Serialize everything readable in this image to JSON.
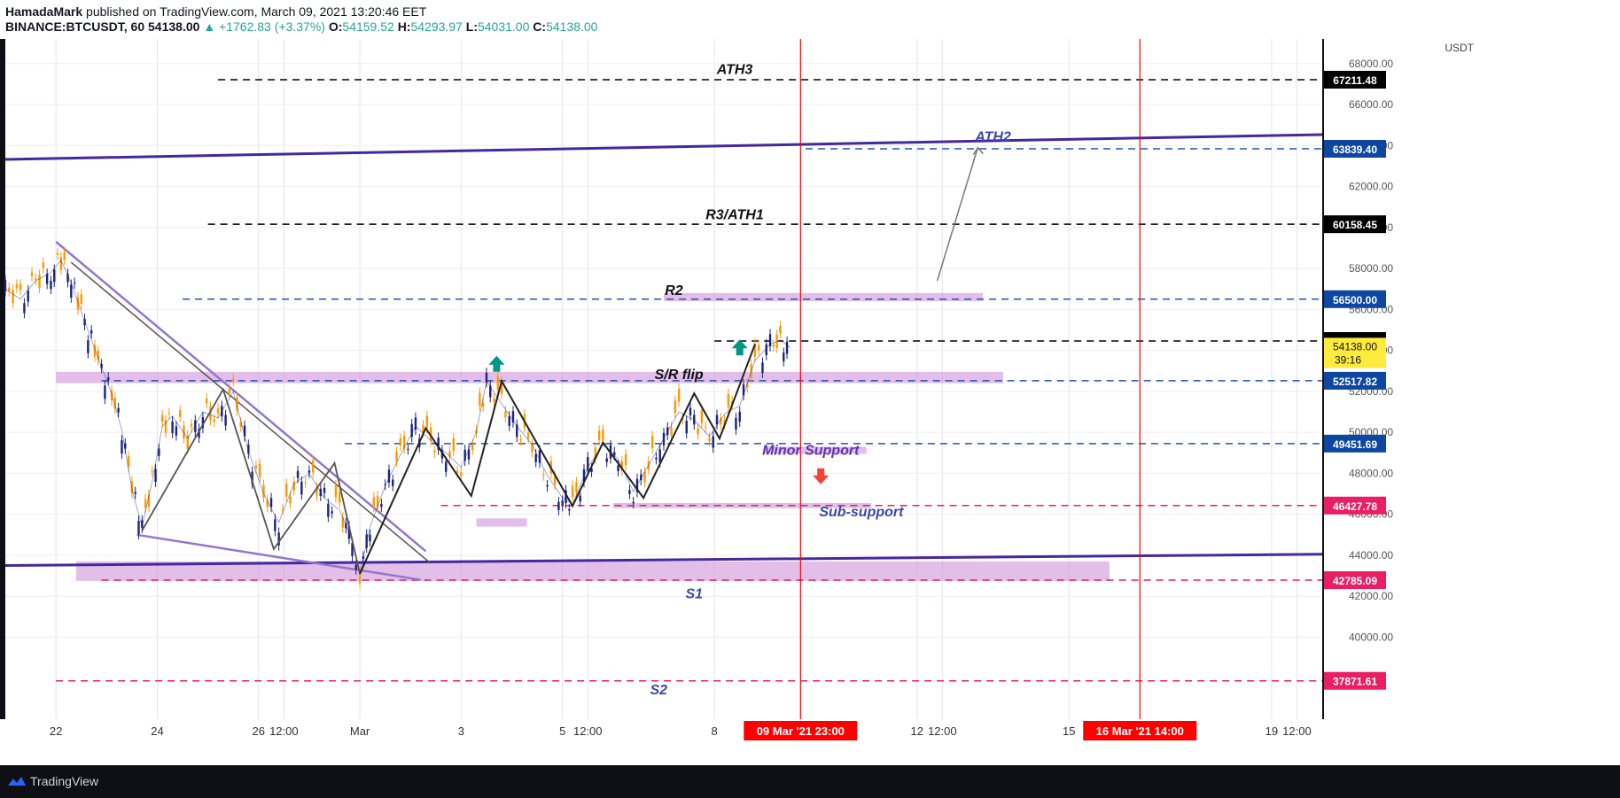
{
  "header": {
    "author": "HamadaMark",
    "published": "published on TradingView.com, March 09, 2021 13:20:46 EET",
    "symbol": "BINANCE:BTCUSDT, 60",
    "last": "54138.00",
    "change": "▲ +1762.83 (+3.37%)",
    "o_label": "O:",
    "o_val": "54159.52",
    "h_label": "H:",
    "h_val": "54293.97",
    "l_label": "L:",
    "l_val": "54031.00",
    "c_label": "C:",
    "c_val": "54138.00"
  },
  "chart_data": {
    "type": "line",
    "currency": "USDT",
    "ylim": [
      36000,
      69200
    ],
    "y_ticks": [
      40000,
      42000,
      44000,
      46000,
      48000,
      50000,
      52000,
      54000,
      56000,
      58000,
      60000,
      62000,
      64000,
      66000,
      68000
    ],
    "y_tick_labels": [
      "40000.00",
      "42000.00",
      "44000.00",
      "46000.00",
      "48000.00",
      "50000.00",
      "52000.00",
      "54000.00",
      "56000.00",
      "58000.00",
      "60000.00",
      "62000.00",
      "64000.00",
      "66000.00",
      "68000.00"
    ],
    "x_tick_labels": [
      "22",
      "24",
      "26",
      "12:00",
      "Mar",
      "3",
      "5",
      "12:00",
      "8",
      "12",
      "12:00",
      "15",
      "19",
      "12:00"
    ],
    "x_tick_days": [
      22,
      24,
      26,
      26.5,
      28,
      30,
      32,
      32.5,
      35,
      39,
      39.5,
      42,
      46,
      46.5
    ],
    "x_range_days": [
      21,
      47
    ],
    "price_series": {
      "x_days": [
        21.0,
        21.3,
        21.6,
        21.9,
        22.1,
        22.3,
        22.5,
        22.7,
        22.9,
        23.1,
        23.3,
        23.5,
        23.7,
        23.9,
        24.1,
        24.3,
        24.6,
        24.9,
        25.2,
        25.5,
        25.8,
        26.1,
        26.4,
        26.7,
        27.0,
        27.3,
        27.6,
        27.85,
        28.0,
        28.2,
        28.5,
        28.8,
        29.1,
        29.4,
        29.7,
        30.0,
        30.3,
        30.5,
        30.8,
        31.1,
        31.4,
        31.7,
        32.0,
        32.2,
        32.5,
        32.8,
        33.1,
        33.4,
        33.7,
        34.0,
        34.3,
        34.6,
        34.9,
        35.2,
        35.5,
        35.8,
        36.1,
        36.3,
        36.5
      ],
      "y": [
        57000,
        56500,
        57400,
        57800,
        58400,
        57300,
        55900,
        54500,
        53200,
        51900,
        50100,
        47200,
        45400,
        47600,
        50300,
        50800,
        49700,
        51000,
        50700,
        52000,
        49100,
        47000,
        45600,
        47500,
        48000,
        46800,
        46200,
        44700,
        43100,
        45400,
        47400,
        48900,
        50300,
        49600,
        49000,
        48300,
        50000,
        52500,
        51400,
        50300,
        49400,
        47900,
        46800,
        46500,
        48300,
        49400,
        48700,
        47100,
        48400,
        49700,
        51000,
        50600,
        49800,
        50900,
        51300,
        53500,
        54300,
        54500,
        54138
      ]
    },
    "horizontal_levels": [
      {
        "value": 67211.48,
        "label": "67211.48",
        "color": "#000000",
        "tag_bg": "#000000"
      },
      {
        "value": 63839.4,
        "label": "63839.40",
        "color": "#1e56b8",
        "tag_bg": "#0d47a1"
      },
      {
        "value": 60158.45,
        "label": "60158.45",
        "color": "#000000",
        "tag_bg": "#000000"
      },
      {
        "value": 56500.0,
        "label": "56500.00",
        "color": "#1e56b8",
        "tag_bg": "#0d47a1"
      },
      {
        "value": 54458.62,
        "label": "54458.62",
        "color": "#000000",
        "tag_bg": "#000000"
      },
      {
        "value": 52517.82,
        "label": "52517.82",
        "color": "#1e56b8",
        "tag_bg": "#0d47a1"
      },
      {
        "value": 49451.69,
        "label": "49451.69",
        "color": "#1e56b8",
        "tag_bg": "#0d47a1"
      },
      {
        "value": 46427.78,
        "label": "46427.78",
        "color": "#e91e63",
        "tag_bg": "#e91e63"
      },
      {
        "value": 42785.09,
        "label": "42785.09",
        "color": "#e91e63",
        "tag_bg": "#e91e63"
      },
      {
        "value": 37871.61,
        "label": "37871.61",
        "color": "#e91e63",
        "tag_bg": "#e91e63"
      }
    ],
    "current_price_tag": {
      "value": 54138.0,
      "label": "54138.00",
      "countdown": "39:16",
      "bg": "#ffeb3b"
    },
    "annotations": [
      {
        "text": "ATH3",
        "x_day": 35.4,
        "y": 67500
      },
      {
        "text": "ATH2",
        "x_day": 40.5,
        "y": 64200
      },
      {
        "text": "R3/ATH1",
        "x_day": 35.4,
        "y": 60400
      },
      {
        "text": "R2",
        "x_day": 34.2,
        "y": 56700
      },
      {
        "text": "S/R flip",
        "x_day": 34.3,
        "y": 52600
      },
      {
        "text": "Minor Support",
        "x_day": 36.9,
        "y": 48900
      },
      {
        "text": "Sub-support",
        "x_day": 37.9,
        "y": 45900
      },
      {
        "text": "S1",
        "x_day": 34.6,
        "y": 41900
      },
      {
        "text": "S2",
        "x_day": 33.9,
        "y": 37200
      }
    ],
    "date_markers": [
      {
        "label": "09 Mar '21   23:00",
        "x_day": 36.7
      },
      {
        "label": "16 Mar '21   14:00",
        "x_day": 43.4
      }
    ],
    "colors": {
      "candle_up": "#ff9800",
      "candle_down": "#1a237e",
      "zone": "#ce93d8",
      "trendline": "#4527a0",
      "vline": "#ff0000",
      "arrow_up": "#009688",
      "arrow_down": "#f44336"
    }
  },
  "footer": {
    "brand": "TradingView"
  }
}
